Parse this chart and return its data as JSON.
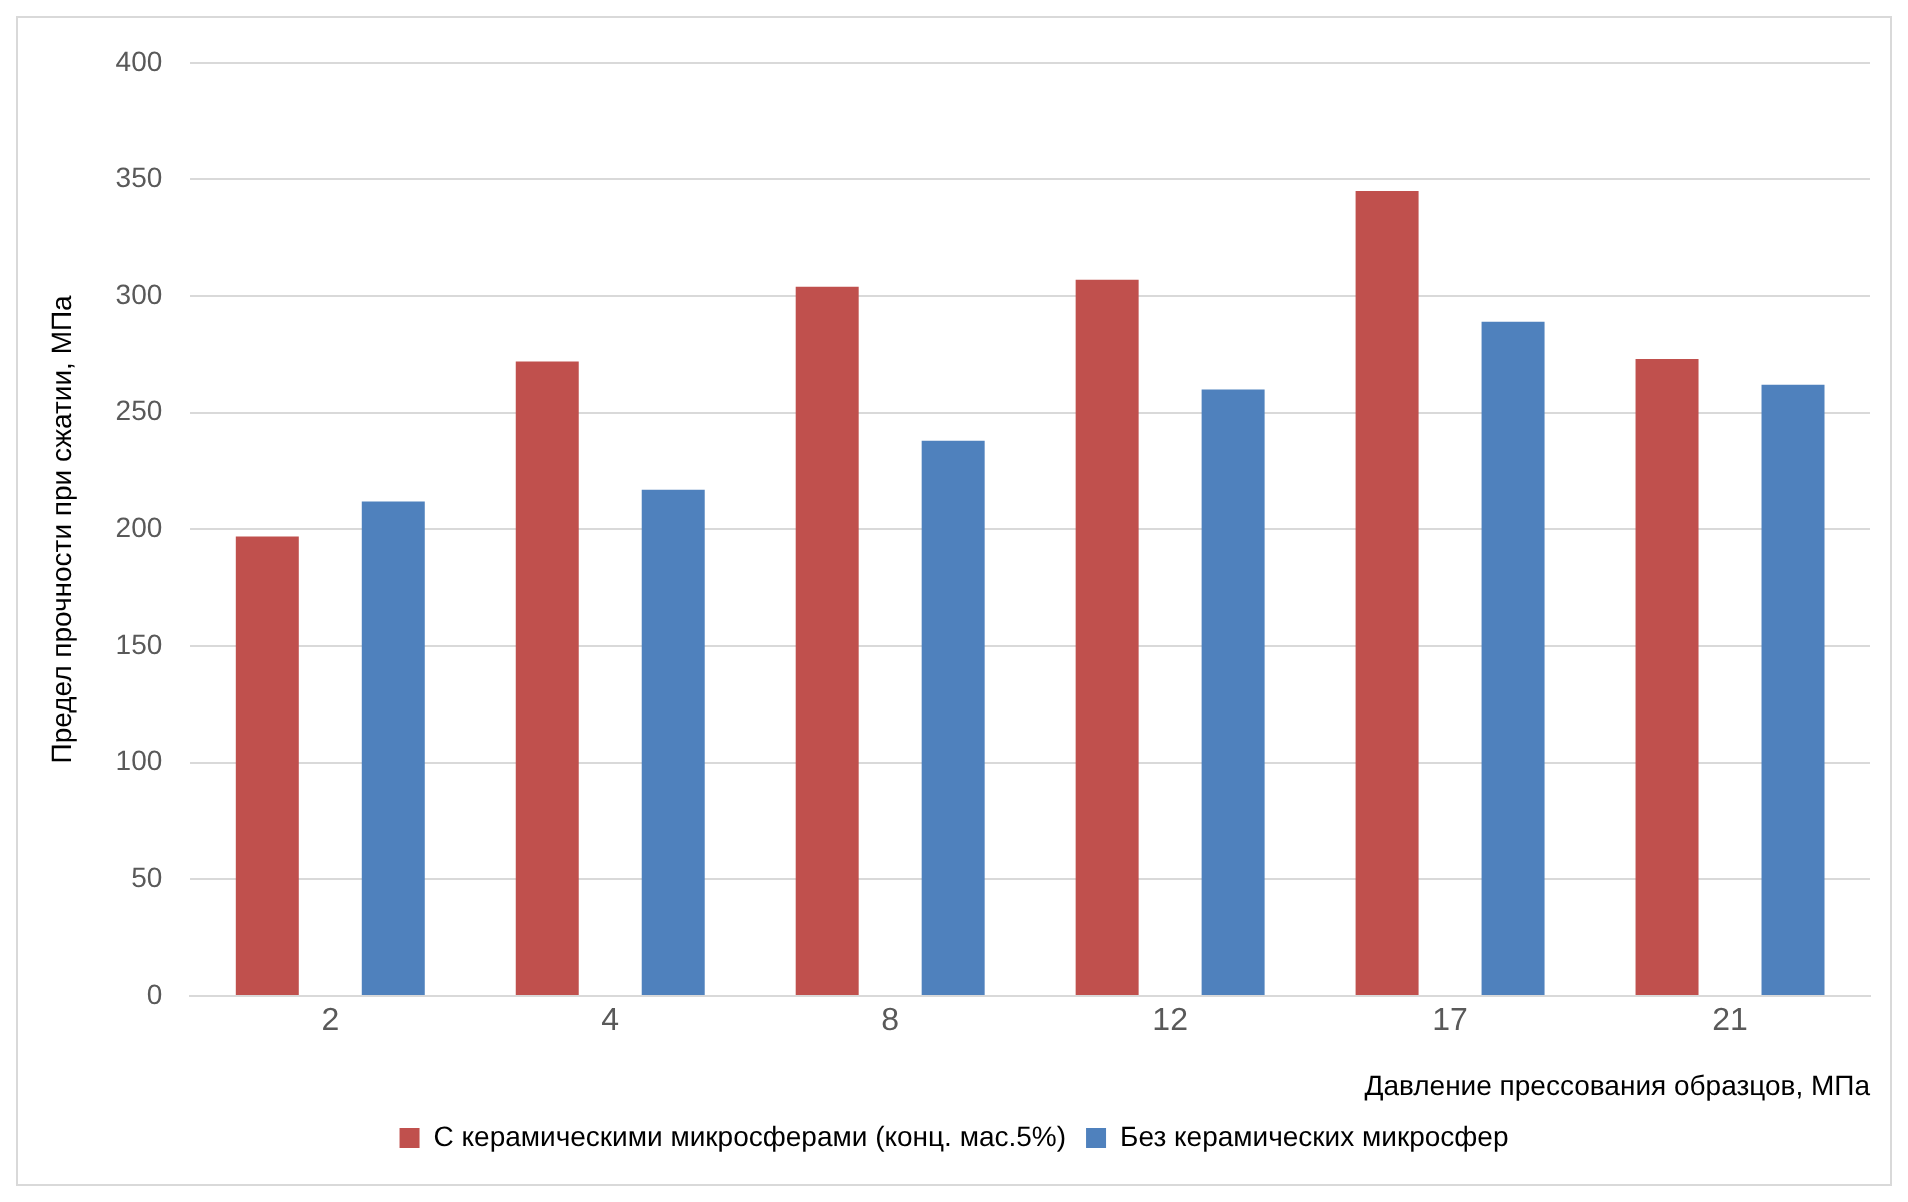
{
  "chart_data": {
    "type": "bar",
    "xlabel": "Давление прессования образцов, МПа",
    "ylabel": "Предел прочности при сжатии, МПа",
    "categories": [
      "2",
      "4",
      "8",
      "12",
      "17",
      "21"
    ],
    "series": [
      {
        "name": "С керамическими микросферами (конц. мас.5%)",
        "color": "#c0504d",
        "values": [
          197,
          272,
          304,
          307,
          345,
          273
        ]
      },
      {
        "name": "Без керамических микросфер",
        "color": "#4f81bd",
        "values": [
          212,
          217,
          238,
          260,
          289,
          262
        ]
      }
    ],
    "ylim": [
      0,
      400
    ],
    "yticks": [
      0,
      50,
      100,
      150,
      200,
      250,
      300,
      350,
      400
    ],
    "grid": "y",
    "legend": "bottom"
  }
}
